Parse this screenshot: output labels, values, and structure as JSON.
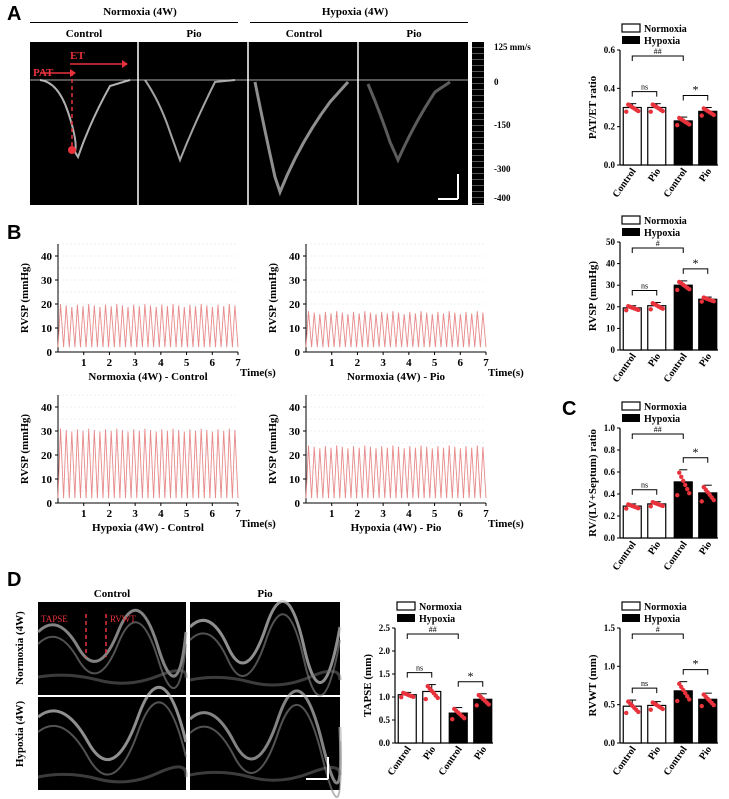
{
  "panelA": {
    "letter": "A",
    "group_headers": [
      "Normoxia (4W)",
      "Hypoxia (4W)"
    ],
    "col_labels": [
      "Control",
      "Pio",
      "Control",
      "Pio"
    ],
    "annotations": {
      "pat": "PAT",
      "et": "ET"
    },
    "scale_ticks": [
      "125 mm/s",
      "0",
      "-150",
      "-300",
      "-400"
    ]
  },
  "panelB": {
    "letter": "B",
    "ylabel": "RVSP (mmHg)",
    "xlabel": "Time(s)",
    "yticks": [
      "0",
      "10",
      "20",
      "30",
      "40"
    ],
    "xticks": [
      "1",
      "2",
      "3",
      "4",
      "5",
      "6",
      "7"
    ],
    "traces": [
      {
        "title": "Normoxia (4W) - Control",
        "peak": 20,
        "trough": 2
      },
      {
        "title": "Normoxia (4W) - Pio",
        "peak": 17,
        "trough": 2
      },
      {
        "title": "Hypoxia (4W) - Control",
        "peak": 31,
        "trough": 2
      },
      {
        "title": "Hypoxia (4W) - Pio",
        "peak": 24,
        "trough": 2
      }
    ]
  },
  "panelC": {
    "letter": "C"
  },
  "panelD": {
    "letter": "D",
    "col_labels": [
      "Control",
      "Pio"
    ],
    "row_labels": [
      "Normoxia (4W)",
      "Hypoxia (4W)"
    ],
    "annotations": {
      "tapse": "TAPSE",
      "rvwt": "RVWT"
    }
  },
  "legend": {
    "normoxia": "Normoxia",
    "hypoxia": "Hypoxia"
  },
  "colors": {
    "dot": "#e8323c",
    "trace": "#e88a8a",
    "grid": "#cfe8ef"
  },
  "chart_data": [
    {
      "type": "bar",
      "id": "pat-et",
      "ylabel": "PAT/ET ratio",
      "ylim": [
        0,
        0.6
      ],
      "yticks": [
        "0.0",
        "0.2",
        "0.4",
        "0.6"
      ],
      "categories": [
        "Control",
        "Pio",
        "Control",
        "Pio"
      ],
      "groups": [
        "Normoxia",
        "Normoxia",
        "Hypoxia",
        "Hypoxia"
      ],
      "values": [
        0.3,
        0.3,
        0.23,
        0.28
      ],
      "errors": [
        0.02,
        0.02,
        0.02,
        0.02
      ],
      "significance": [
        {
          "label": "ns",
          "from": 0,
          "to": 1
        },
        {
          "label": "*",
          "from": 2,
          "to": 3
        },
        {
          "label": "##",
          "from": 0,
          "to": 2
        }
      ]
    },
    {
      "type": "bar",
      "id": "rvsp",
      "ylabel": "RVSP (mmHg)",
      "ylim": [
        0,
        50
      ],
      "yticks": [
        "0",
        "10",
        "20",
        "30",
        "40",
        "50"
      ],
      "categories": [
        "Control",
        "Pio",
        "Control",
        "Pio"
      ],
      "groups": [
        "Normoxia",
        "Normoxia",
        "Hypoxia",
        "Hypoxia"
      ],
      "values": [
        19.5,
        20.5,
        30,
        23.5
      ],
      "errors": [
        1.0,
        1.5,
        2.0,
        1.0
      ],
      "significance": [
        {
          "label": "ns",
          "from": 0,
          "to": 1
        },
        {
          "label": "*",
          "from": 2,
          "to": 3
        },
        {
          "label": "#",
          "from": 0,
          "to": 2
        }
      ]
    },
    {
      "type": "bar",
      "id": "fulton",
      "ylabel": "RV/(LV+Septum) ratio",
      "ylim": [
        0,
        1.0
      ],
      "yticks": [
        "0.0",
        "0.2",
        "0.4",
        "0.6",
        "0.8",
        "1.0"
      ],
      "categories": [
        "Control",
        "Pio",
        "Control",
        "Pio"
      ],
      "groups": [
        "Normoxia",
        "Normoxia",
        "Hypoxia",
        "Hypoxia"
      ],
      "values": [
        0.29,
        0.31,
        0.51,
        0.41
      ],
      "errors": [
        0.02,
        0.02,
        0.11,
        0.07
      ],
      "significance": [
        {
          "label": "ns",
          "from": 0,
          "to": 1
        },
        {
          "label": "*",
          "from": 2,
          "to": 3
        },
        {
          "label": "##",
          "from": 0,
          "to": 2
        }
      ]
    },
    {
      "type": "bar",
      "id": "tapse",
      "ylabel": "TAPSE (mm)",
      "ylim": [
        0,
        2.5
      ],
      "yticks": [
        "0.0",
        "0.5",
        "1.0",
        "1.5",
        "2.0",
        "2.5"
      ],
      "categories": [
        "Control",
        "Pio",
        "Control",
        "Pio"
      ],
      "groups": [
        "Normoxia",
        "Normoxia",
        "Hypoxia",
        "Hypoxia"
      ],
      "values": [
        1.05,
        1.12,
        0.65,
        0.95
      ],
      "errors": [
        0.05,
        0.15,
        0.12,
        0.12
      ],
      "significance": [
        {
          "label": "ns",
          "from": 0,
          "to": 1
        },
        {
          "label": "*",
          "from": 2,
          "to": 3
        },
        {
          "label": "##",
          "from": 0,
          "to": 2
        }
      ]
    },
    {
      "type": "bar",
      "id": "rvwt",
      "ylabel": "RVWT (mm)",
      "ylim": [
        0,
        1.5
      ],
      "yticks": [
        "0.0",
        "0.5",
        "1.0",
        "1.5"
      ],
      "categories": [
        "Control",
        "Pio",
        "Control",
        "Pio"
      ],
      "groups": [
        "Normoxia",
        "Normoxia",
        "Hypoxia",
        "Hypoxia"
      ],
      "values": [
        0.48,
        0.49,
        0.68,
        0.57
      ],
      "errors": [
        0.08,
        0.05,
        0.12,
        0.08
      ],
      "significance": [
        {
          "label": "ns",
          "from": 0,
          "to": 1
        },
        {
          "label": "*",
          "from": 2,
          "to": 3
        },
        {
          "label": "#",
          "from": 0,
          "to": 2
        }
      ]
    }
  ]
}
